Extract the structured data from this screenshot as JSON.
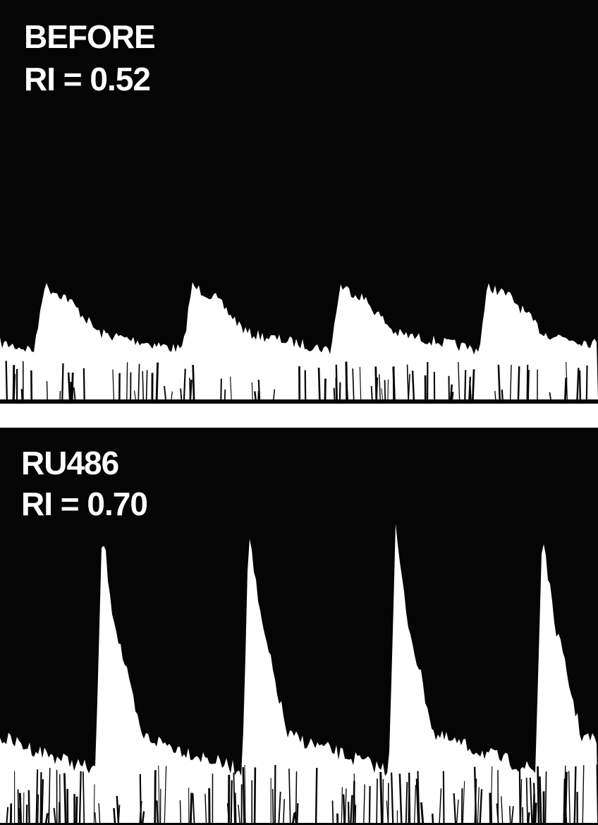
{
  "panels": [
    {
      "label": "BEFORE",
      "ri": "RI = 0.52"
    },
    {
      "label": "RU486",
      "ri": "RI = 0.70"
    }
  ]
}
